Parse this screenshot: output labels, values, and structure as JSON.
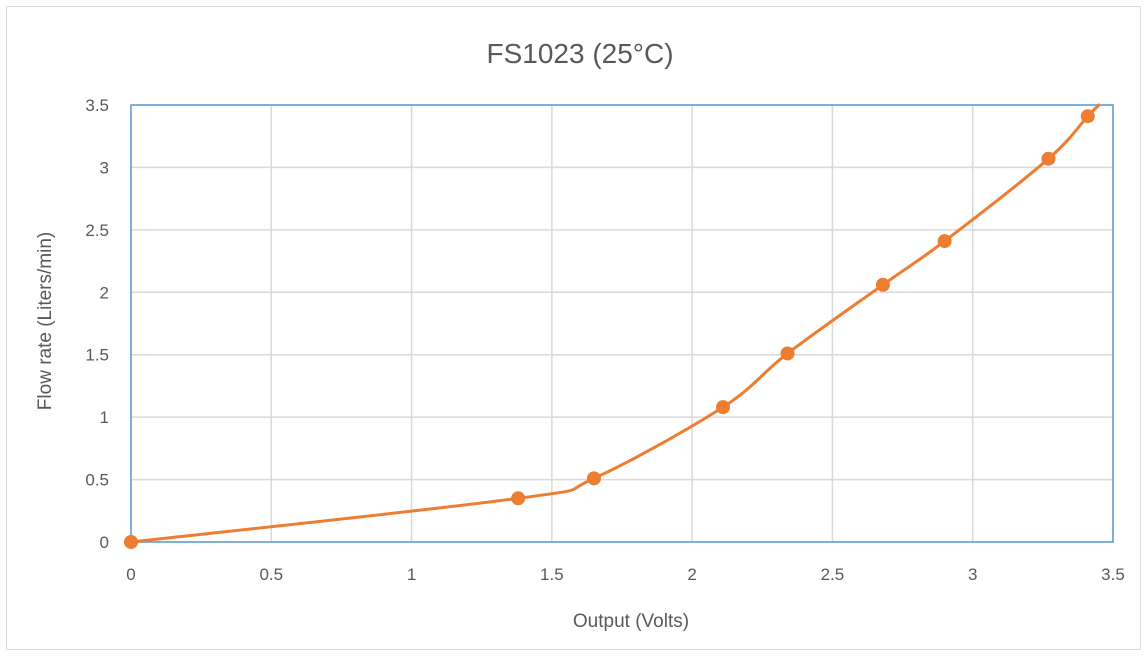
{
  "chart_data": {
    "type": "scatter",
    "title": "FS1023 (25°C)",
    "xlabel": "Output (Volts)",
    "ylabel": "Flow rate (Liters/min)",
    "xlim": [
      0,
      3.5
    ],
    "ylim": [
      0,
      3.5
    ],
    "xticks": [
      "0",
      "0.5",
      "1",
      "1.5",
      "2",
      "2.5",
      "3",
      "3.5"
    ],
    "yticks": [
      "0",
      "0.5",
      "1",
      "1.5",
      "2",
      "2.5",
      "3",
      "3.5"
    ],
    "grid": true,
    "smooth_line": true,
    "series": [
      {
        "color": "#ed7d31",
        "x": [
          0,
          1.38,
          1.65,
          2.11,
          2.34,
          2.68,
          2.9,
          3.27,
          3.41,
          3.45
        ],
        "y": [
          0,
          0.35,
          0.51,
          1.08,
          1.51,
          2.06,
          2.41,
          3.07,
          3.41,
          3.5
        ],
        "marker_points": 9
      }
    ],
    "colors": {
      "plot_border": "#5b9bd5",
      "grid": "#d9d9d9",
      "text": "#595959"
    }
  }
}
